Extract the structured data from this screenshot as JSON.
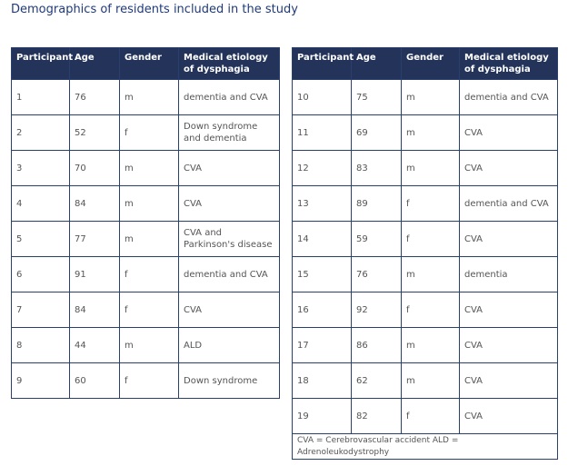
{
  "title": "Demographics of residents included in the study",
  "tables": [
    {
      "columns": [
        "Participant",
        "Age",
        "Gender",
        "Medical etiology of dysphagia"
      ],
      "rows": [
        [
          1,
          76,
          "m",
          "dementia and CVA"
        ],
        [
          2,
          52,
          "f",
          "Down syndrome and dementia"
        ],
        [
          3,
          70,
          "m",
          "CVA"
        ],
        [
          4,
          84,
          "m",
          "CVA"
        ],
        [
          5,
          77,
          "m",
          "CVA and Parkinson's disease"
        ],
        [
          6,
          91,
          "f",
          "dementia and CVA"
        ],
        [
          7,
          84,
          "f",
          "CVA"
        ],
        [
          8,
          44,
          "m",
          "ALD"
        ],
        [
          9,
          60,
          "f",
          "Down syndrome"
        ]
      ]
    },
    {
      "columns": [
        "Participant",
        "Age",
        "Gender",
        "Medical etiology of dysphagia"
      ],
      "rows": [
        [
          10,
          75,
          "m",
          "dementia and CVA"
        ],
        [
          11,
          69,
          "m",
          "CVA"
        ],
        [
          12,
          83,
          "m",
          "CVA"
        ],
        [
          13,
          89,
          "f",
          "dementia and CVA"
        ],
        [
          14,
          59,
          "f",
          "CVA"
        ],
        [
          15,
          76,
          "m",
          "dementia"
        ],
        [
          16,
          92,
          "f",
          "CVA"
        ],
        [
          17,
          86,
          "m",
          "CVA"
        ],
        [
          18,
          62,
          "m",
          "CVA"
        ],
        [
          19,
          82,
          "f",
          "CVA"
        ]
      ],
      "footnote": "CVA = Cerebrovascular accident ALD = Adrenoleukodystrophy"
    }
  ]
}
